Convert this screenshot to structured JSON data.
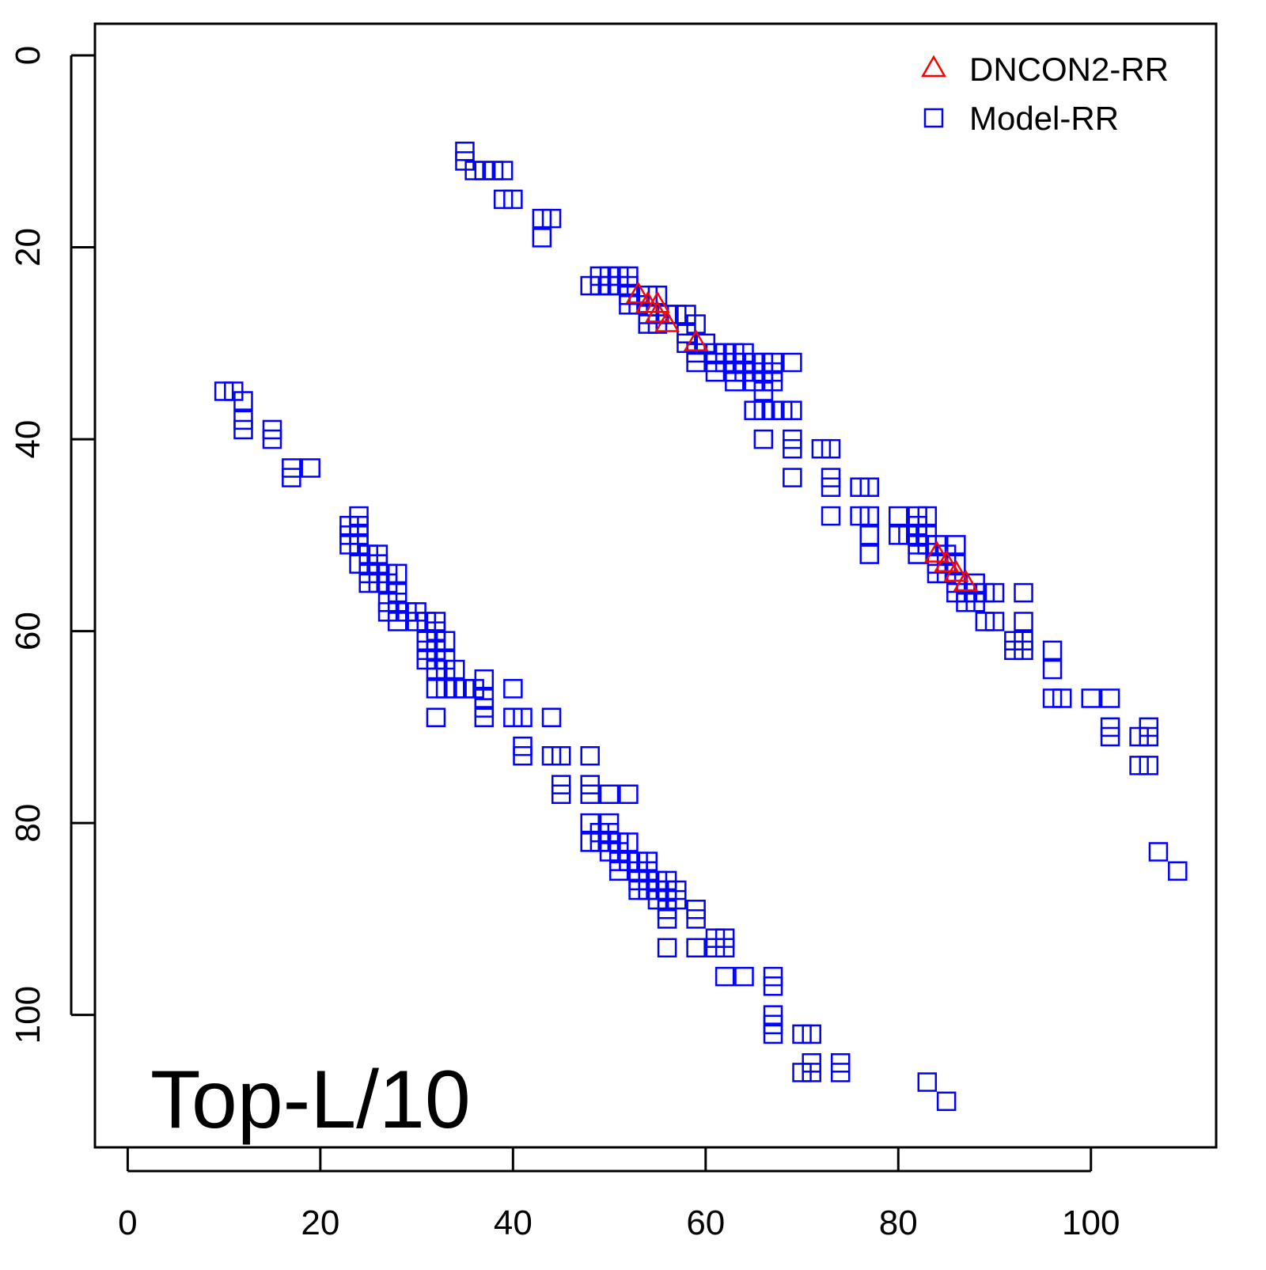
{
  "chart_data": {
    "type": "scatter",
    "title": "",
    "xlabel": "",
    "ylabel": "",
    "xlim": [
      -3.4,
      113
    ],
    "ylim": [
      -3.3,
      113.8
    ],
    "y_inverted": true,
    "x_ticks": [
      0,
      20,
      40,
      60,
      80,
      100
    ],
    "y_ticks": [
      0,
      20,
      40,
      60,
      80,
      100
    ],
    "grid": false,
    "legend_position": "top-right",
    "annotation": "Top-L/10",
    "series": [
      {
        "name": "DNCON2-RR",
        "marker": "triangle",
        "color": "#ff0000",
        "points": [
          [
            53,
            25
          ],
          [
            54,
            26
          ],
          [
            55,
            26
          ],
          [
            55,
            27
          ],
          [
            56,
            28
          ],
          [
            59,
            30
          ],
          [
            84,
            52
          ],
          [
            85,
            53
          ],
          [
            86,
            54
          ],
          [
            87,
            55
          ]
        ]
      },
      {
        "name": "Model-RR",
        "marker": "square",
        "color": "#0000ff",
        "points": [
          [
            35,
            10
          ],
          [
            35,
            11
          ],
          [
            36,
            12
          ],
          [
            37,
            12
          ],
          [
            38,
            12
          ],
          [
            39,
            12
          ],
          [
            39,
            15
          ],
          [
            40,
            15
          ],
          [
            43,
            17
          ],
          [
            44,
            17
          ],
          [
            43,
            19
          ],
          [
            48,
            24
          ],
          [
            49,
            23
          ],
          [
            49,
            24
          ],
          [
            50,
            23
          ],
          [
            50,
            24
          ],
          [
            51,
            23
          ],
          [
            51,
            24
          ],
          [
            52,
            23
          ],
          [
            52,
            24
          ],
          [
            52,
            25
          ],
          [
            52,
            26
          ],
          [
            53,
            26
          ],
          [
            54,
            25
          ],
          [
            54,
            27
          ],
          [
            54,
            28
          ],
          [
            55,
            25
          ],
          [
            55,
            28
          ],
          [
            56,
            27
          ],
          [
            57,
            27
          ],
          [
            58,
            27
          ],
          [
            58,
            29
          ],
          [
            58,
            30
          ],
          [
            59,
            28
          ],
          [
            59,
            31
          ],
          [
            59,
            32
          ],
          [
            60,
            30
          ],
          [
            61,
            31
          ],
          [
            61,
            32
          ],
          [
            61,
            33
          ],
          [
            62,
            31
          ],
          [
            62,
            32
          ],
          [
            63,
            31
          ],
          [
            63,
            32
          ],
          [
            63,
            33
          ],
          [
            63,
            34
          ],
          [
            64,
            31
          ],
          [
            64,
            32
          ],
          [
            64,
            33
          ],
          [
            65,
            32
          ],
          [
            65,
            33
          ],
          [
            65,
            34
          ],
          [
            65,
            37
          ],
          [
            66,
            32
          ],
          [
            66,
            33
          ],
          [
            66,
            34
          ],
          [
            66,
            35
          ],
          [
            66,
            37
          ],
          [
            66,
            40
          ],
          [
            67,
            32
          ],
          [
            67,
            33
          ],
          [
            67,
            34
          ],
          [
            67,
            37
          ],
          [
            68,
            37
          ],
          [
            69,
            37
          ],
          [
            69,
            32
          ],
          [
            69,
            40
          ],
          [
            69,
            41
          ],
          [
            69,
            44
          ],
          [
            72,
            41
          ],
          [
            73,
            41
          ],
          [
            73,
            44
          ],
          [
            73,
            45
          ],
          [
            73,
            48
          ],
          [
            76,
            45
          ],
          [
            77,
            45
          ],
          [
            76,
            48
          ],
          [
            77,
            48
          ],
          [
            77,
            50
          ],
          [
            77,
            52
          ],
          [
            80,
            48
          ],
          [
            80,
            50
          ],
          [
            81,
            50
          ],
          [
            82,
            48
          ],
          [
            82,
            49
          ],
          [
            82,
            50
          ],
          [
            82,
            51
          ],
          [
            82,
            52
          ],
          [
            83,
            48
          ],
          [
            83,
            50
          ],
          [
            83,
            51
          ],
          [
            84,
            51
          ],
          [
            84,
            53
          ],
          [
            84,
            54
          ],
          [
            85,
            52
          ],
          [
            85,
            54
          ],
          [
            86,
            51
          ],
          [
            86,
            53
          ],
          [
            86,
            55
          ],
          [
            86,
            56
          ],
          [
            87,
            56
          ],
          [
            87,
            57
          ],
          [
            88,
            55
          ],
          [
            88,
            56
          ],
          [
            88,
            57
          ],
          [
            89,
            59
          ],
          [
            89,
            56
          ],
          [
            90,
            56
          ],
          [
            90,
            59
          ],
          [
            92,
            61
          ],
          [
            92,
            62
          ],
          [
            93,
            56
          ],
          [
            93,
            59
          ],
          [
            93,
            61
          ],
          [
            93,
            62
          ],
          [
            96,
            62
          ],
          [
            96,
            64
          ],
          [
            96,
            67
          ],
          [
            97,
            67
          ],
          [
            100,
            67
          ],
          [
            102,
            67
          ],
          [
            102,
            70
          ],
          [
            102,
            71
          ],
          [
            105,
            71
          ],
          [
            105,
            74
          ],
          [
            106,
            70
          ],
          [
            106,
            71
          ],
          [
            106,
            74
          ],
          [
            107,
            83
          ],
          [
            109,
            85
          ],
          [
            10,
            35
          ],
          [
            11,
            35
          ],
          [
            12,
            36
          ],
          [
            12,
            38
          ],
          [
            12,
            39
          ],
          [
            15,
            39
          ],
          [
            15,
            40
          ],
          [
            17,
            43
          ],
          [
            17,
            44
          ],
          [
            19,
            43
          ],
          [
            23,
            49
          ],
          [
            23,
            50
          ],
          [
            23,
            51
          ],
          [
            24,
            48
          ],
          [
            24,
            49
          ],
          [
            24,
            50
          ],
          [
            24,
            51
          ],
          [
            24,
            53
          ],
          [
            25,
            52
          ],
          [
            25,
            54
          ],
          [
            25,
            55
          ],
          [
            26,
            52
          ],
          [
            26,
            53
          ],
          [
            26,
            55
          ],
          [
            27,
            54
          ],
          [
            27,
            55
          ],
          [
            27,
            57
          ],
          [
            27,
            58
          ],
          [
            28,
            54
          ],
          [
            28,
            56
          ],
          [
            28,
            57
          ],
          [
            28,
            59
          ],
          [
            29,
            58
          ],
          [
            30,
            59
          ],
          [
            30,
            58
          ],
          [
            31,
            59
          ],
          [
            31,
            61
          ],
          [
            31,
            62
          ],
          [
            31,
            63
          ],
          [
            32,
            59
          ],
          [
            32,
            60
          ],
          [
            32,
            61
          ],
          [
            32,
            62
          ],
          [
            32,
            63
          ],
          [
            32,
            64
          ],
          [
            32,
            66
          ],
          [
            32,
            69
          ],
          [
            33,
            61
          ],
          [
            33,
            63
          ],
          [
            33,
            64
          ],
          [
            33,
            66
          ],
          [
            34,
            64
          ],
          [
            34,
            66
          ],
          [
            35,
            66
          ],
          [
            37,
            65
          ],
          [
            37,
            67
          ],
          [
            37,
            68
          ],
          [
            37,
            69
          ],
          [
            36,
            66
          ],
          [
            40,
            66
          ],
          [
            40,
            69
          ],
          [
            41,
            69
          ],
          [
            41,
            72
          ],
          [
            41,
            73
          ],
          [
            44,
            69
          ],
          [
            44,
            73
          ],
          [
            45,
            73
          ],
          [
            45,
            76
          ],
          [
            45,
            77
          ],
          [
            48,
            73
          ],
          [
            48,
            76
          ],
          [
            48,
            77
          ],
          [
            50,
            77
          ],
          [
            52,
            77
          ],
          [
            48,
            80
          ],
          [
            48,
            82
          ],
          [
            49,
            81
          ],
          [
            49,
            82
          ],
          [
            50,
            80
          ],
          [
            50,
            81
          ],
          [
            50,
            82
          ],
          [
            50,
            83
          ],
          [
            51,
            82
          ],
          [
            51,
            83
          ],
          [
            51,
            84
          ],
          [
            51,
            85
          ],
          [
            52,
            82
          ],
          [
            52,
            84
          ],
          [
            53,
            84
          ],
          [
            53,
            85
          ],
          [
            53,
            86
          ],
          [
            53,
            87
          ],
          [
            54,
            84
          ],
          [
            54,
            85
          ],
          [
            54,
            86
          ],
          [
            54,
            87
          ],
          [
            55,
            86
          ],
          [
            55,
            87
          ],
          [
            55,
            88
          ],
          [
            56,
            86
          ],
          [
            56,
            87
          ],
          [
            56,
            88
          ],
          [
            56,
            89
          ],
          [
            56,
            90
          ],
          [
            56,
            93
          ],
          [
            57,
            87
          ],
          [
            57,
            88
          ],
          [
            59,
            89
          ],
          [
            59,
            90
          ],
          [
            59,
            93
          ],
          [
            61,
            92
          ],
          [
            61,
            93
          ],
          [
            62,
            92
          ],
          [
            62,
            93
          ],
          [
            62,
            96
          ],
          [
            64,
            96
          ],
          [
            67,
            96
          ],
          [
            67,
            97
          ],
          [
            67,
            100
          ],
          [
            67,
            101
          ],
          [
            67,
            102
          ],
          [
            70,
            102
          ],
          [
            71,
            102
          ],
          [
            70,
            106
          ],
          [
            71,
            105
          ],
          [
            71,
            106
          ],
          [
            74,
            105
          ],
          [
            74,
            106
          ],
          [
            83,
            107
          ],
          [
            85,
            109
          ]
        ]
      }
    ]
  }
}
